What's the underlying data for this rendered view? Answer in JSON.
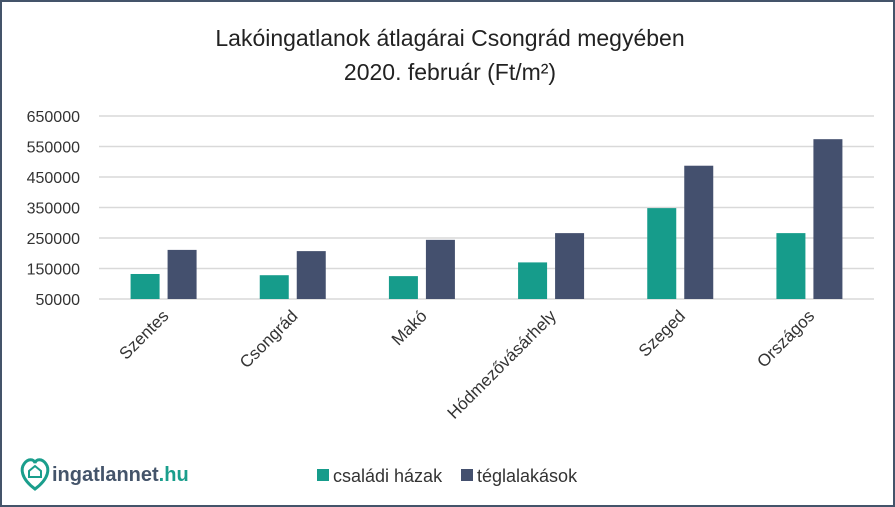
{
  "chart_data": {
    "type": "bar",
    "title": "Lakóingatlanok átlagárai Csongrád megyében",
    "subtitle": "2020. február (Ft/m²)",
    "categories": [
      "Szentes",
      "Csongrád",
      "Makó",
      "Hódmezővásárhely",
      "Szeged",
      "Országos"
    ],
    "series": [
      {
        "name": "családi házak",
        "color": "#169c8b",
        "values": [
          132000,
          128000,
          125000,
          170000,
          348000,
          266000
        ]
      },
      {
        "name": "téglalakások",
        "color": "#44506e",
        "values": [
          211000,
          207000,
          244000,
          266000,
          487000,
          574000
        ]
      }
    ],
    "yticks": [
      "50000",
      "150000",
      "250000",
      "350000",
      "450000",
      "550000",
      "650000"
    ],
    "ylim": [
      50000,
      650000
    ],
    "grid": true,
    "legend": "bottom",
    "xlabel": "",
    "ylabel": ""
  },
  "logo": {
    "text_main": "ingatlannet",
    "text_tld": ".hu",
    "color": "#1a9e8c",
    "text_color": "#44546a"
  }
}
